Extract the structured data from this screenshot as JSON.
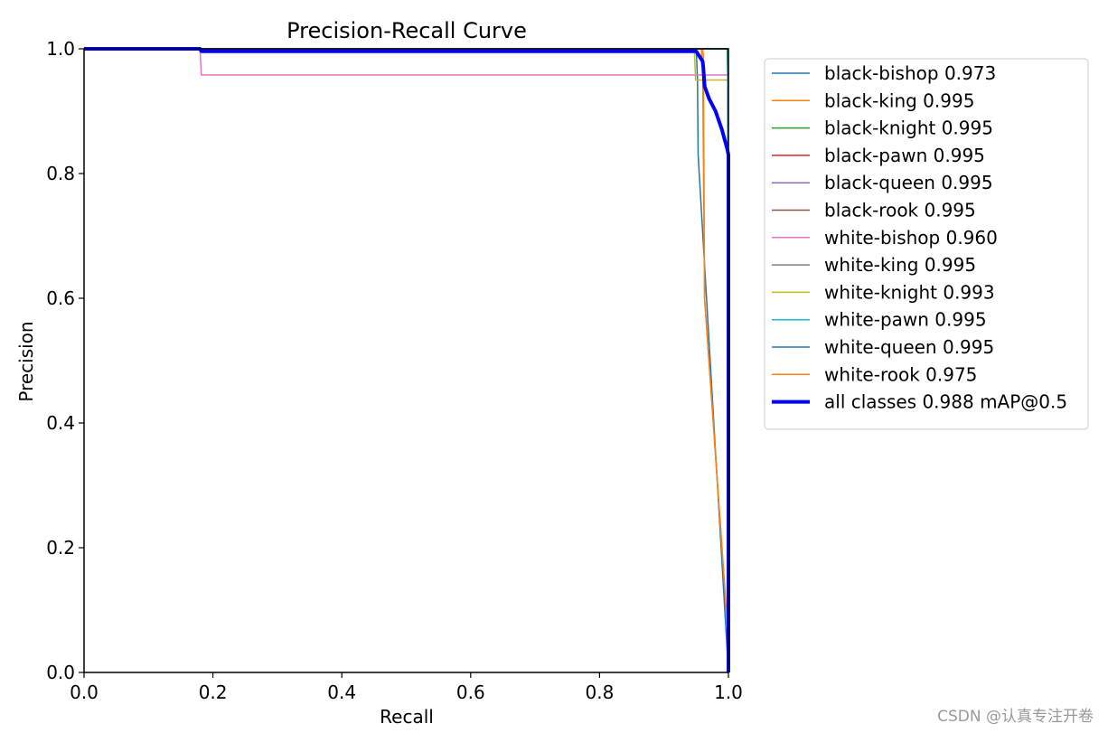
{
  "chart_data": {
    "type": "line",
    "title": "Precision-Recall Curve",
    "xlabel": "Recall",
    "ylabel": "Precision",
    "xlim": [
      0,
      1
    ],
    "ylim": [
      0,
      1
    ],
    "xticks": [
      "0.0",
      "0.2",
      "0.4",
      "0.6",
      "0.8",
      "1.0"
    ],
    "yticks": [
      "0.0",
      "0.2",
      "0.4",
      "0.6",
      "0.8",
      "1.0"
    ],
    "grid": false,
    "legend_position": "outside-right-top",
    "series": [
      {
        "name": "black-bishop 0.973",
        "color": "#1f77b4",
        "width": 1.5,
        "points": [
          [
            0,
            1
          ],
          [
            0.95,
            1
          ],
          [
            0.952,
            0.95
          ],
          [
            0.953,
            0.83
          ],
          [
            1.0,
            0.0
          ]
        ]
      },
      {
        "name": "black-king 0.995",
        "color": "#ff7f0e",
        "width": 1.5,
        "points": [
          [
            0,
            1
          ],
          [
            0.96,
            1
          ],
          [
            0.961,
            0.99
          ],
          [
            0.962,
            0.8
          ],
          [
            0.963,
            0.6
          ],
          [
            0.99,
            0.2
          ],
          [
            1.0,
            0.05
          ]
        ]
      },
      {
        "name": "black-knight 0.995",
        "color": "#2ca02c",
        "width": 1.5,
        "points": [
          [
            0,
            1
          ],
          [
            0.998,
            1
          ],
          [
            0.999,
            0.95
          ],
          [
            1.0,
            0.0
          ]
        ]
      },
      {
        "name": "black-pawn 0.995",
        "color": "#d62728",
        "width": 1.5,
        "points": [
          [
            0,
            1
          ],
          [
            0.999,
            1
          ],
          [
            1.0,
            0.0
          ]
        ]
      },
      {
        "name": "black-queen 0.995",
        "color": "#9467bd",
        "width": 1.5,
        "points": [
          [
            0,
            1
          ],
          [
            0.999,
            1
          ],
          [
            1.0,
            0.0
          ]
        ]
      },
      {
        "name": "black-rook 0.995",
        "color": "#8c564b",
        "width": 1.5,
        "points": [
          [
            0,
            1
          ],
          [
            0.999,
            1
          ],
          [
            1.0,
            0.0
          ]
        ]
      },
      {
        "name": "white-bishop 0.960",
        "color": "#e377c2",
        "width": 1.5,
        "points": [
          [
            0,
            1
          ],
          [
            0.18,
            1
          ],
          [
            0.182,
            0.958
          ],
          [
            0.999,
            0.958
          ],
          [
            1.0,
            0.0
          ]
        ]
      },
      {
        "name": "white-king 0.995",
        "color": "#7f7f7f",
        "width": 1.5,
        "points": [
          [
            0,
            1
          ],
          [
            0.999,
            1
          ],
          [
            1.0,
            0.0
          ]
        ]
      },
      {
        "name": "white-knight 0.993",
        "color": "#bcbd22",
        "width": 1.5,
        "points": [
          [
            0,
            1
          ],
          [
            0.947,
            1
          ],
          [
            0.949,
            0.95
          ],
          [
            0.999,
            0.95
          ],
          [
            1.0,
            0.0
          ]
        ]
      },
      {
        "name": "white-pawn 0.995",
        "color": "#17becf",
        "width": 1.5,
        "points": [
          [
            0,
            1
          ],
          [
            0.999,
            1
          ],
          [
            1.0,
            0.0
          ]
        ]
      },
      {
        "name": "white-queen 0.995",
        "color": "#1f77b4",
        "width": 1.5,
        "points": [
          [
            0,
            1
          ],
          [
            0.999,
            1
          ],
          [
            1.0,
            0.0
          ]
        ]
      },
      {
        "name": "white-rook 0.975",
        "color": "#ff7f0e",
        "width": 1.5,
        "points": [
          [
            0,
            1
          ],
          [
            0.958,
            1
          ],
          [
            0.96,
            0.97
          ],
          [
            0.963,
            0.6
          ],
          [
            1.0,
            0.05
          ]
        ]
      },
      {
        "name": "all classes 0.988 mAP@0.5",
        "color": "#0000ff",
        "width": 4,
        "points": [
          [
            0,
            1
          ],
          [
            0.18,
            1
          ],
          [
            0.182,
            0.996
          ],
          [
            0.95,
            0.996
          ],
          [
            0.96,
            0.98
          ],
          [
            0.961,
            0.97
          ],
          [
            0.963,
            0.94
          ],
          [
            0.97,
            0.92
          ],
          [
            0.98,
            0.9
          ],
          [
            0.99,
            0.87
          ],
          [
            0.998,
            0.84
          ],
          [
            1.0,
            0.83
          ],
          [
            1.0,
            0.0
          ]
        ]
      }
    ]
  },
  "watermark": "CSDN @认真专注开卷"
}
